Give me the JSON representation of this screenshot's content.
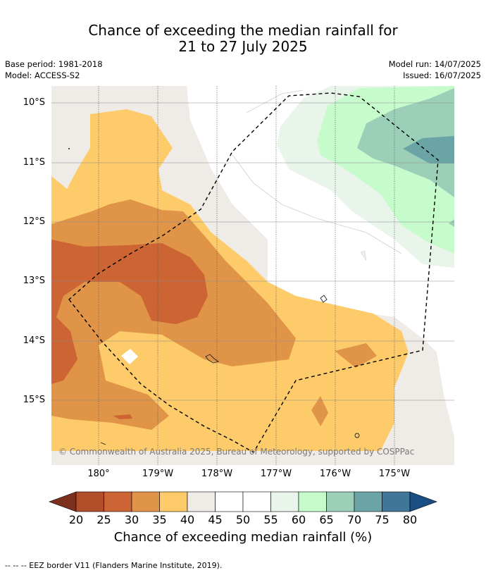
{
  "title_line1": "Chance of exceeding the median rainfall for",
  "title_line2": "21 to 27 July 2025",
  "base_period": "Base period: 1981-2018",
  "model": "Model: ACCESS-S2",
  "model_run": "Model run: 14/07/2025",
  "issued": "Issued: 16/07/2025",
  "copyright": "© Commonwealth of Australia 2025, Bureau of Meteorology, supported by COSPPac",
  "lat_labels": [
    "10°S",
    "11°S",
    "12°S",
    "13°S",
    "14°S",
    "15°S"
  ],
  "lon_labels": [
    "180°",
    "179°W",
    "178°W",
    "177°W",
    "176°W",
    "175°W"
  ],
  "colorbar": {
    "ticks": [
      "20",
      "25",
      "30",
      "35",
      "40",
      "45",
      "50",
      "55",
      "60",
      "65",
      "70",
      "75",
      "80"
    ],
    "colors": [
      "#7b2f1d",
      "#b24d2a",
      "#cc6533",
      "#e09447",
      "#fdcb6a",
      "#efebe6",
      "#ffffff",
      "#ffffff",
      "#e9f5ea",
      "#c6fbcc",
      "#9ccfb8",
      "#6aa4a6",
      "#3f7699",
      "#1a4f83"
    ],
    "label": "Chance of exceeding median rainfall (%)"
  },
  "footer": "--  --  -- EEZ border V11 (Flanders Marine Institute, 2019)."
}
